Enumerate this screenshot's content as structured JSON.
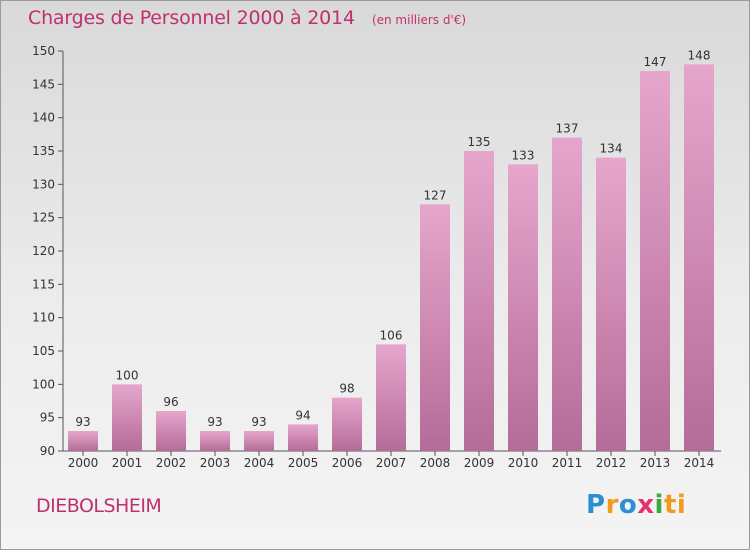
{
  "header": {
    "title": "Charges de Personnel 2000 à 2014",
    "subtitle": "(en milliers d'€)"
  },
  "footer": {
    "commune": "DIEBOLSHEIM",
    "logo_text": "Proxiti"
  },
  "colors": {
    "title": "#c0306e",
    "bar_top": "#e6a6cc",
    "bar_bottom": "#b46c98"
  },
  "chart_data": {
    "type": "bar",
    "categories": [
      "2000",
      "2001",
      "2002",
      "2003",
      "2004",
      "2005",
      "2006",
      "2007",
      "2008",
      "2009",
      "2010",
      "2011",
      "2012",
      "2013",
      "2014"
    ],
    "values": [
      93,
      100,
      96,
      93,
      93,
      94,
      98,
      106,
      127,
      135,
      133,
      137,
      134,
      147,
      148
    ],
    "title": "Charges de Personnel 2000 à 2014",
    "ylim": [
      90,
      150
    ],
    "yticks": [
      90,
      95,
      100,
      105,
      110,
      115,
      120,
      125,
      130,
      135,
      140,
      145,
      150
    ],
    "grid": false,
    "data_labels": true
  }
}
